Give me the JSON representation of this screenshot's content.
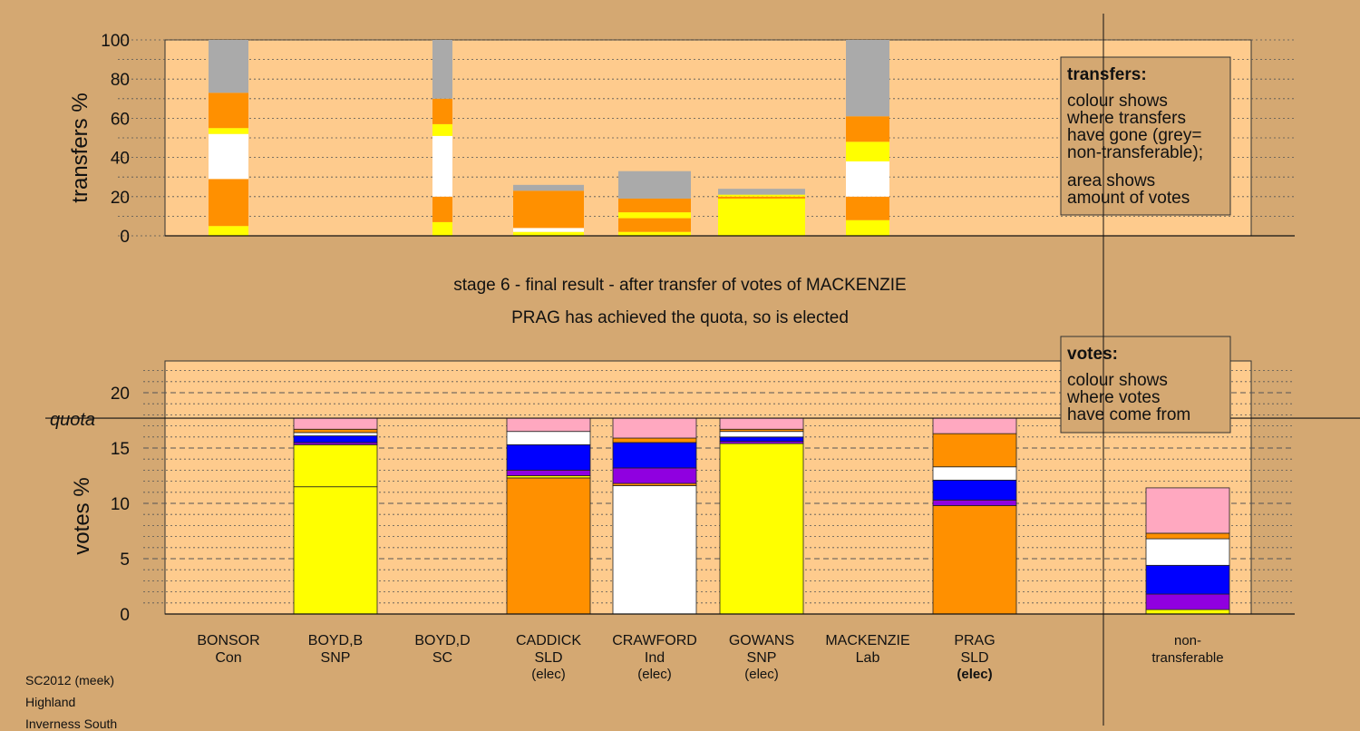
{
  "stage_title": "stage 6 - final result - after transfer of votes of MACKENZIE",
  "stage_note": "PRAG has achieved the quota, so is elected",
  "footer": [
    "SC2012 (meek)",
    "Highland",
    "Inverness South"
  ],
  "legend_transfers": {
    "title": "transfers:",
    "lines": [
      "colour shows",
      "where transfers",
      "have gone (grey=",
      "non-transferable);"
    ],
    "lines2": [
      "area shows",
      "amount of votes"
    ]
  },
  "legend_votes": {
    "title": "votes:",
    "lines": [
      "colour shows",
      "where votes",
      "have come from"
    ]
  },
  "colors": {
    "background": "#d4a872",
    "plot_bg": "#fecb8d",
    "Con": "#aaaaaa",
    "SNP": "#ffff00",
    "SC": "#ffffff",
    "SLD": "#ff9000",
    "Ind": "#ffffff",
    "Lab": "#ffa8c0",
    "blue": "#0000ff",
    "purple": "#9000e0",
    "grey": "#aaaaaa"
  },
  "chart_data": [
    {
      "type": "bar",
      "stacked": true,
      "ylabel": "transfers %",
      "ylim": [
        0,
        100
      ],
      "yticks": [
        0,
        20,
        40,
        60,
        80,
        100
      ],
      "grid": true,
      "legend_position": "top-right",
      "bars": [
        {
          "candidate": "BONSOR",
          "segments": [
            {
              "color": "#ffff00",
              "value": 5
            },
            {
              "color": "#ff9000",
              "value": 24
            },
            {
              "color": "#ffffff",
              "value": 23
            },
            {
              "color": "#ffff00",
              "value": 3
            },
            {
              "color": "#ff9000",
              "value": 18
            },
            {
              "color": "#aaaaaa",
              "value": 27
            }
          ]
        },
        {
          "candidate": "BOYD,D",
          "segments": [
            {
              "color": "#ffff00",
              "value": 7
            },
            {
              "color": "#ff9000",
              "value": 13
            },
            {
              "color": "#ffffff",
              "value": 31
            },
            {
              "color": "#ffff00",
              "value": 6
            },
            {
              "color": "#ff9000",
              "value": 13
            },
            {
              "color": "#aaaaaa",
              "value": 30
            }
          ]
        },
        {
          "candidate": "CADDICK",
          "segments": [
            {
              "color": "#ffff00",
              "value": 2
            },
            {
              "color": "#ffffff",
              "value": 2
            },
            {
              "color": "#ff9000",
              "value": 19
            },
            {
              "color": "#aaaaaa",
              "value": 3
            }
          ]
        },
        {
          "candidate": "CRAWFORD",
          "segments": [
            {
              "color": "#ffff00",
              "value": 2
            },
            {
              "color": "#ff9000",
              "value": 7
            },
            {
              "color": "#ffff00",
              "value": 3
            },
            {
              "color": "#ff9000",
              "value": 7
            },
            {
              "color": "#aaaaaa",
              "value": 14
            }
          ]
        },
        {
          "candidate": "GOWANS",
          "segments": [
            {
              "color": "#ffff00",
              "value": 19
            },
            {
              "color": "#ff9000",
              "value": 1
            },
            {
              "color": "#ffff00",
              "value": 1
            },
            {
              "color": "#aaaaaa",
              "value": 3
            }
          ]
        },
        {
          "candidate": "PRAG",
          "segments": [
            {
              "color": "#ffff00",
              "value": 8
            },
            {
              "color": "#ff9000",
              "value": 12
            },
            {
              "color": "#ffffff",
              "value": 18
            },
            {
              "color": "#ffff00",
              "value": 10
            },
            {
              "color": "#ff9000",
              "value": 13
            },
            {
              "color": "#aaaaaa",
              "value": 39
            }
          ]
        }
      ]
    },
    {
      "type": "bar",
      "stacked": true,
      "ylabel": "votes %",
      "ylim": [
        0,
        22
      ],
      "yticks": [
        0,
        5,
        10,
        15,
        20
      ],
      "quota": 17.7,
      "quota_label": "quota",
      "grid": true,
      "legend_position": "top-right",
      "categories": [
        {
          "name": "BONSOR",
          "party": "Con",
          "status": ""
        },
        {
          "name": "BOYD,B",
          "party": "SNP",
          "status": ""
        },
        {
          "name": "BOYD,D",
          "party": "SC",
          "status": ""
        },
        {
          "name": "CADDICK",
          "party": "SLD",
          "status": "(elec)"
        },
        {
          "name": "CRAWFORD",
          "party": "Ind",
          "status": "(elec)"
        },
        {
          "name": "GOWANS",
          "party": "SNP",
          "status": "(elec)"
        },
        {
          "name": "MACKENZIE",
          "party": "Lab",
          "status": ""
        },
        {
          "name": "PRAG",
          "party": "SLD",
          "status": "(elec)"
        }
      ],
      "extra_category": {
        "line1": "non-",
        "line2": "transferable"
      },
      "bars": [
        {
          "candidate": "BONSOR",
          "segments": []
        },
        {
          "candidate": "BOYD,B",
          "segments": [
            {
              "color": "#ffff00",
              "value": 11.5
            },
            {
              "color": "#ffff00",
              "value": 3.8
            },
            {
              "color": "#9000e0",
              "value": 0.2
            },
            {
              "color": "#0000ff",
              "value": 0.6
            },
            {
              "color": "#ffffff",
              "value": 0.3
            },
            {
              "color": "#ff9000",
              "value": 0.3
            },
            {
              "color": "#ffa8c0",
              "value": 1.0
            }
          ]
        },
        {
          "candidate": "BOYD,D",
          "segments": []
        },
        {
          "candidate": "CADDICK",
          "segments": [
            {
              "color": "#ff9000",
              "value": 12.3
            },
            {
              "color": "#ffff00",
              "value": 0.2
            },
            {
              "color": "#9000e0",
              "value": 0.5
            },
            {
              "color": "#0000ff",
              "value": 2.3
            },
            {
              "color": "#ffffff",
              "value": 1.2
            },
            {
              "color": "#ffa8c0",
              "value": 1.2
            }
          ]
        },
        {
          "candidate": "CRAWFORD",
          "segments": [
            {
              "color": "#ffffff",
              "value": 11.6
            },
            {
              "color": "#ff9000",
              "value": 0.2
            },
            {
              "color": "#9000e0",
              "value": 1.4
            },
            {
              "color": "#0000ff",
              "value": 2.3
            },
            {
              "color": "#ff9000",
              "value": 0.4
            },
            {
              "color": "#ffa8c0",
              "value": 1.8
            }
          ]
        },
        {
          "candidate": "GOWANS",
          "segments": [
            {
              "color": "#ffff00",
              "value": 15.4
            },
            {
              "color": "#9000e0",
              "value": 0.2
            },
            {
              "color": "#0000ff",
              "value": 0.4
            },
            {
              "color": "#ffffff",
              "value": 0.5
            },
            {
              "color": "#ff9000",
              "value": 0.2
            },
            {
              "color": "#ffa8c0",
              "value": 1.0
            }
          ]
        },
        {
          "candidate": "MACKENZIE",
          "segments": []
        },
        {
          "candidate": "PRAG",
          "segments": [
            {
              "color": "#ff9000",
              "value": 9.8
            },
            {
              "color": "#9000e0",
              "value": 0.5
            },
            {
              "color": "#0000ff",
              "value": 1.8
            },
            {
              "color": "#ffffff",
              "value": 1.2
            },
            {
              "color": "#ff9000",
              "value": 3.0
            },
            {
              "color": "#ffa8c0",
              "value": 1.4
            }
          ]
        },
        {
          "candidate": "non-transferable",
          "segments": [
            {
              "color": "#ffff00",
              "value": 0.4
            },
            {
              "color": "#9000e0",
              "value": 1.4
            },
            {
              "color": "#0000ff",
              "value": 2.6
            },
            {
              "color": "#ffffff",
              "value": 2.4
            },
            {
              "color": "#ff9000",
              "value": 0.5
            },
            {
              "color": "#ffa8c0",
              "value": 4.1
            }
          ]
        }
      ]
    }
  ]
}
